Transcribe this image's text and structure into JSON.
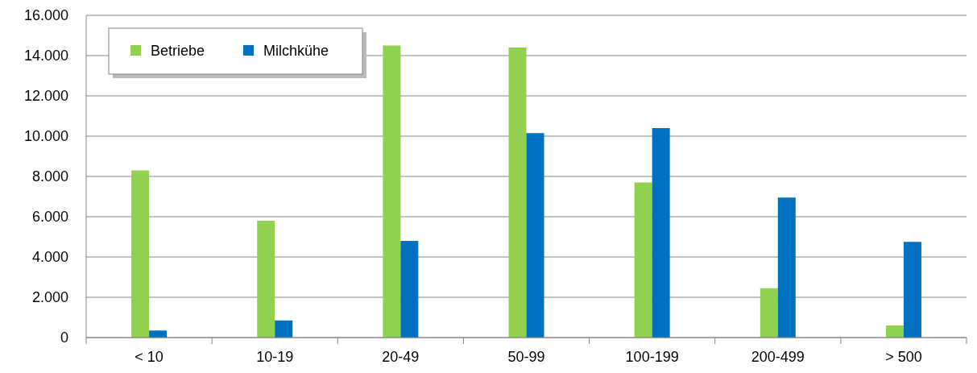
{
  "chart_data": {
    "type": "bar",
    "categories": [
      "< 10",
      "10-19",
      "20-49",
      "50-99",
      "100-199",
      "200-499",
      "> 500"
    ],
    "series": [
      {
        "name": "Betriebe",
        "color": "#92d050",
        "values": [
          8300,
          5800,
          14500,
          14400,
          7700,
          2450,
          600
        ]
      },
      {
        "name": "Milchkühe",
        "color": "#0070c0",
        "values": [
          350,
          850,
          4800,
          10150,
          10400,
          6950,
          4750
        ]
      }
    ],
    "ylim": [
      0,
      16000
    ],
    "yticks": [
      0,
      {
        "value": 2000,
        "label": "2.000"
      },
      {
        "value": 4000,
        "label": "4.000"
      },
      {
        "value": 6000,
        "label": "6.000"
      },
      {
        "value": 8000,
        "label": "8.000"
      },
      {
        "value": 10000,
        "label": "10.000"
      },
      {
        "value": 12000,
        "label": "12.000"
      },
      {
        "value": 14000,
        "label": "14.000"
      },
      {
        "value": 16000,
        "label": "16.000"
      }
    ],
    "grid": "y",
    "legend": "top left"
  }
}
